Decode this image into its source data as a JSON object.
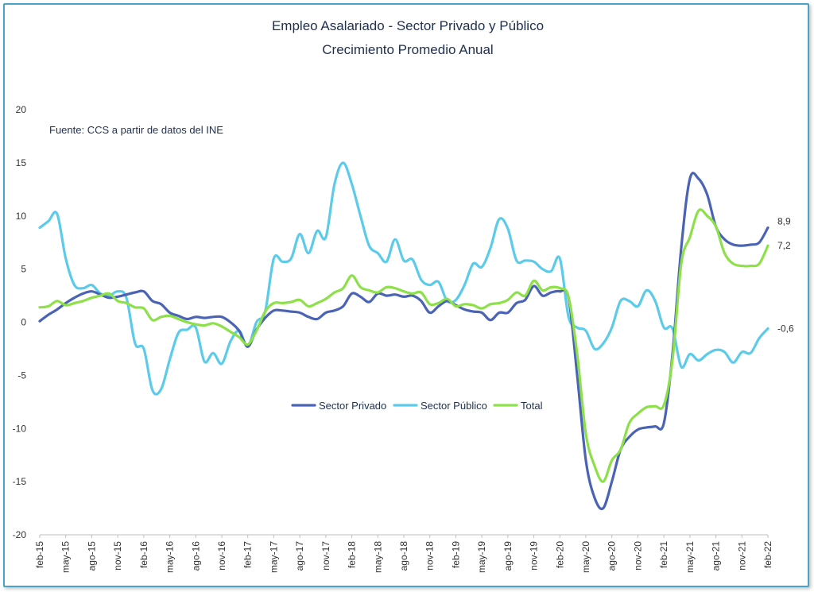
{
  "chart_data": {
    "type": "line",
    "title": "Empleo Asalariado - Sector Privado y Público",
    "subtitle": "Crecimiento Promedio Anual",
    "annotation": "Fuente: CCS a partir de datos del INE",
    "ylim": [
      -20,
      20
    ],
    "yticks": [
      -20,
      -15,
      -10,
      -5,
      0,
      5,
      10,
      15,
      20
    ],
    "grid": false,
    "legend_position": "center",
    "x": [
      "feb-15",
      "mar-15",
      "abr-15",
      "may-15",
      "jun-15",
      "jul-15",
      "ago-15",
      "sep-15",
      "oct-15",
      "nov-15",
      "dic-15",
      "ene-16",
      "feb-16",
      "mar-16",
      "abr-16",
      "may-16",
      "jun-16",
      "jul-16",
      "ago-16",
      "sep-16",
      "oct-16",
      "nov-16",
      "dic-16",
      "ene-17",
      "feb-17",
      "mar-17",
      "abr-17",
      "may-17",
      "jun-17",
      "jul-17",
      "ago-17",
      "sep-17",
      "oct-17",
      "nov-17",
      "dic-17",
      "ene-18",
      "feb-18",
      "mar-18",
      "abr-18",
      "may-18",
      "jun-18",
      "jul-18",
      "ago-18",
      "sep-18",
      "oct-18",
      "nov-18",
      "dic-18",
      "ene-19",
      "feb-19",
      "mar-19",
      "abr-19",
      "may-19",
      "jun-19",
      "jul-19",
      "ago-19",
      "sep-19",
      "oct-19",
      "nov-19",
      "dic-19",
      "ene-20",
      "feb-20",
      "mar-20",
      "abr-20",
      "may-20",
      "jun-20",
      "jul-20",
      "ago-20",
      "sep-20",
      "oct-20",
      "nov-20",
      "dic-20",
      "ene-21",
      "feb-21",
      "mar-21",
      "abr-21",
      "may-21",
      "jun-21",
      "jul-21",
      "ago-21",
      "sep-21",
      "oct-21",
      "nov-21",
      "dic-21",
      "ene-22",
      "feb-22"
    ],
    "x_tick_labels": [
      "feb-15",
      "may-15",
      "ago-15",
      "nov-15",
      "feb-16",
      "may-16",
      "ago-16",
      "nov-16",
      "feb-17",
      "may-17",
      "ago-17",
      "nov-17",
      "feb-18",
      "may-18",
      "ago-18",
      "nov-18",
      "feb-19",
      "may-19",
      "ago-19",
      "nov-19",
      "feb-20",
      "may-20",
      "ago-20",
      "nov-20",
      "feb-21",
      "may-21",
      "ago-21",
      "nov-21",
      "feb-22"
    ],
    "series": [
      {
        "name": "Sector Privado",
        "color": "#4a63b5",
        "end_label": "8,9",
        "values": [
          0.1,
          0.7,
          1.2,
          1.8,
          2.3,
          2.7,
          2.9,
          2.6,
          2.3,
          2.4,
          2.6,
          2.8,
          2.9,
          2.0,
          1.7,
          0.9,
          0.6,
          0.3,
          0.5,
          0.4,
          0.5,
          0.5,
          0.0,
          -0.8,
          -2.3,
          -0.7,
          0.4,
          1.1,
          1.1,
          1.0,
          0.9,
          0.5,
          0.3,
          0.9,
          1.1,
          1.5,
          2.7,
          2.4,
          1.9,
          2.7,
          2.5,
          2.6,
          2.4,
          2.5,
          2.0,
          0.9,
          1.5,
          2.0,
          1.6,
          1.2,
          1.0,
          0.9,
          0.2,
          0.9,
          0.9,
          1.8,
          2.1,
          3.4,
          2.5,
          2.8,
          2.9,
          2.3,
          -5.0,
          -13.0,
          -16.5,
          -17.5,
          -15.0,
          -12.0,
          -10.8,
          -10.1,
          -9.9,
          -9.8,
          -9.5,
          -3.0,
          7.0,
          13.5,
          13.5,
          12.0,
          9.0,
          7.8,
          7.3,
          7.2,
          7.3,
          7.5,
          8.9
        ]
      },
      {
        "name": "Sector Público",
        "color": "#5ccbea",
        "end_label": "-0,6",
        "values": [
          8.9,
          9.5,
          10.2,
          6.0,
          3.5,
          3.2,
          3.5,
          2.7,
          2.5,
          2.9,
          2.3,
          -2.0,
          -2.5,
          -6.4,
          -6.3,
          -3.5,
          -1.0,
          -0.7,
          -0.5,
          -3.7,
          -2.9,
          -3.9,
          -1.8,
          -0.8,
          -2.3,
          0.0,
          1.0,
          6.0,
          5.7,
          6.0,
          8.3,
          6.5,
          8.6,
          8.0,
          13.0,
          15.0,
          13.0,
          10.0,
          7.2,
          6.5,
          5.7,
          7.8,
          5.8,
          5.9,
          4.0,
          3.5,
          3.8,
          2.0,
          2.1,
          3.5,
          5.5,
          5.2,
          7.0,
          9.7,
          8.8,
          5.8,
          5.8,
          5.7,
          5.0,
          4.8,
          6.0,
          0.5,
          -0.5,
          -0.8,
          -2.5,
          -2.0,
          -0.5,
          2.0,
          2.0,
          1.5,
          3.0,
          2.0,
          -0.5,
          -0.6,
          -4.2,
          -3.0,
          -3.6,
          -3.0,
          -2.6,
          -2.8,
          -3.8,
          -2.8,
          -2.9,
          -1.5,
          -0.6
        ]
      },
      {
        "name": "Total",
        "color": "#8ee04a",
        "end_label": "7,2",
        "values": [
          1.4,
          1.5,
          2.0,
          1.6,
          1.8,
          2.0,
          2.3,
          2.5,
          2.7,
          2.0,
          1.8,
          1.4,
          1.3,
          0.2,
          0.5,
          0.6,
          0.3,
          0.0,
          -0.2,
          -0.3,
          -0.1,
          -0.4,
          -0.9,
          -1.4,
          -2.1,
          -0.8,
          1.0,
          1.8,
          1.8,
          1.9,
          2.1,
          1.5,
          1.8,
          2.2,
          2.8,
          3.2,
          4.4,
          3.3,
          3.0,
          2.8,
          3.3,
          3.2,
          2.9,
          2.7,
          2.8,
          1.7,
          1.8,
          2.2,
          1.5,
          1.7,
          1.6,
          1.3,
          1.7,
          1.8,
          2.1,
          2.8,
          2.5,
          3.9,
          3.0,
          3.3,
          3.2,
          2.4,
          -3.0,
          -10.5,
          -13.5,
          -15.0,
          -13.0,
          -12.0,
          -9.5,
          -8.6,
          -8.0,
          -7.9,
          -7.8,
          -3.5,
          5.5,
          8.0,
          10.5,
          10.0,
          9.0,
          6.5,
          5.5,
          5.3,
          5.3,
          5.5,
          7.2
        ]
      }
    ]
  }
}
